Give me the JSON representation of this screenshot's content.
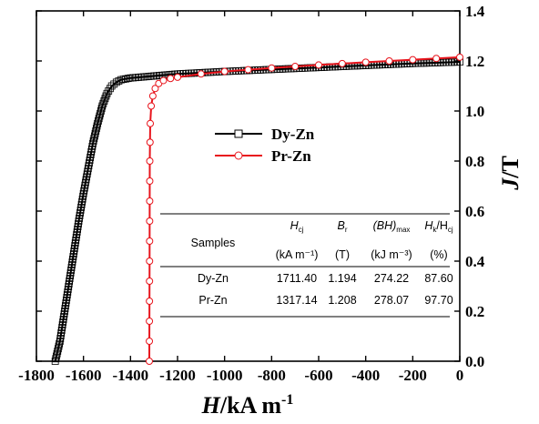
{
  "chart_data": {
    "type": "line",
    "xlabel": "H/kA m-1",
    "ylabel": "J/T",
    "xlim": [
      -1800,
      0
    ],
    "ylim": [
      0.0,
      1.4
    ],
    "x_ticks": [
      "-1800",
      "-1600",
      "-1400",
      "-1200",
      "-1000",
      "-800",
      "-600",
      "-400",
      "-200",
      "0"
    ],
    "y_ticks": [
      "0.0",
      "0.2",
      "0.4",
      "0.6",
      "0.8",
      "1.0",
      "1.2",
      "1.4"
    ],
    "grid": false,
    "legend_position": "upper-center",
    "series": [
      {
        "name": "Dy-Zn",
        "color": "#000000",
        "marker": "open-square",
        "points": [
          [
            -1720,
            0.0
          ],
          [
            -1700,
            0.08
          ],
          [
            -1680,
            0.2
          ],
          [
            -1660,
            0.32
          ],
          [
            -1640,
            0.44
          ],
          [
            -1620,
            0.56
          ],
          [
            -1600,
            0.67
          ],
          [
            -1580,
            0.77
          ],
          [
            -1560,
            0.87
          ],
          [
            -1540,
            0.95
          ],
          [
            -1520,
            1.02
          ],
          [
            -1500,
            1.07
          ],
          [
            -1480,
            1.1
          ],
          [
            -1460,
            1.115
          ],
          [
            -1440,
            1.125
          ],
          [
            -1400,
            1.132
          ],
          [
            -1300,
            1.14
          ],
          [
            -1200,
            1.148
          ],
          [
            -1000,
            1.158
          ],
          [
            -800,
            1.166
          ],
          [
            -600,
            1.174
          ],
          [
            -400,
            1.182
          ],
          [
            -200,
            1.19
          ],
          [
            0,
            1.196
          ]
        ]
      },
      {
        "name": "Pr-Zn",
        "color": "#e8141c",
        "marker": "open-circle",
        "points": [
          [
            -1320,
            0.0
          ],
          [
            -1319,
            0.4
          ],
          [
            -1318,
            0.8
          ],
          [
            -1316,
            0.95
          ],
          [
            -1312,
            1.02
          ],
          [
            -1305,
            1.06
          ],
          [
            -1295,
            1.09
          ],
          [
            -1280,
            1.11
          ],
          [
            -1260,
            1.122
          ],
          [
            -1230,
            1.13
          ],
          [
            -1200,
            1.135
          ],
          [
            -1100,
            1.148
          ],
          [
            -1000,
            1.158
          ],
          [
            -800,
            1.172
          ],
          [
            -600,
            1.184
          ],
          [
            -400,
            1.195
          ],
          [
            -200,
            1.205
          ],
          [
            0,
            1.215
          ]
        ]
      }
    ],
    "table": {
      "headers": {
        "samples": "Samples",
        "hcj": "H",
        "hcj_sub": "cj",
        "br": "B",
        "br_sub": "r",
        "bh": "(BH)",
        "bh_sub": "max",
        "hk": "H",
        "hk_sub": "k",
        "hk_slash": "/H",
        "hk_sub2": "cj"
      },
      "units": [
        "(kA m⁻¹)",
        "(T)",
        "(kJ m⁻³)",
        "(%)"
      ],
      "rows": [
        [
          "Dy-Zn",
          "1711.40",
          "1.194",
          "274.22",
          "87.60"
        ],
        [
          "Pr-Zn",
          "1317.14",
          "1.208",
          "278.07",
          "97.70"
        ]
      ]
    }
  }
}
